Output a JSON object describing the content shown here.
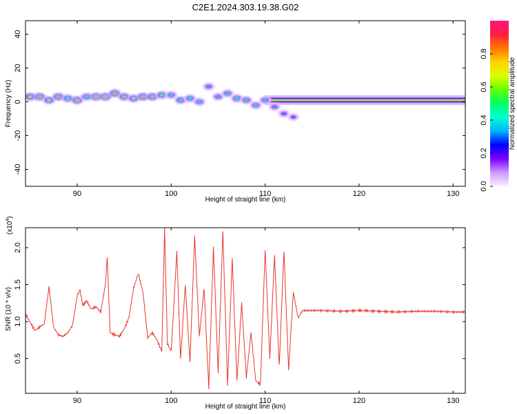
{
  "figure": {
    "title": "C2E1.2024.303.19.38.G02"
  },
  "chart_data": [
    {
      "type": "heatmap",
      "xlabel": "Height of straight line (km)",
      "ylabel": "Frequency (Hz)",
      "xlim": [
        84.5,
        131.3
      ],
      "ylim": [
        -50,
        48
      ],
      "xticks": [
        90,
        100,
        110,
        120,
        130
      ],
      "yticks": [
        -40,
        -20,
        0,
        20,
        40
      ],
      "colorbar": {
        "label": "Normalized spectral amplitude",
        "range": [
          0,
          1
        ],
        "ticks": [
          0.0,
          0.2,
          0.4,
          0.6,
          0.8
        ],
        "colormap": [
          "#f8f0ff",
          "#cc99ff",
          "#7b00ff",
          "#0000ff",
          "#00b4ff",
          "#00ffd2",
          "#00ff64",
          "#64ff00",
          "#dcff00",
          "#ffd200",
          "#ff7800",
          "#ff1e3c",
          "#ff147d"
        ]
      },
      "ridge": [
        {
          "x": 85.0,
          "f": 3,
          "amp": 0.75
        },
        {
          "x": 86.0,
          "f": 3,
          "amp": 0.9
        },
        {
          "x": 87.0,
          "f": 1,
          "amp": 0.65
        },
        {
          "x": 88.0,
          "f": 3,
          "amp": 0.85
        },
        {
          "x": 89.0,
          "f": 2,
          "amp": 0.6
        },
        {
          "x": 90.0,
          "f": 1,
          "amp": 0.9
        },
        {
          "x": 91.0,
          "f": 3,
          "amp": 0.55
        },
        {
          "x": 92.0,
          "f": 3,
          "amp": 0.95
        },
        {
          "x": 93.0,
          "f": 3,
          "amp": 0.95
        },
        {
          "x": 94.0,
          "f": 5,
          "amp": 0.85
        },
        {
          "x": 95.0,
          "f": 3,
          "amp": 0.8
        },
        {
          "x": 96.0,
          "f": 2,
          "amp": 0.65
        },
        {
          "x": 97.0,
          "f": 3,
          "amp": 0.9
        },
        {
          "x": 98.0,
          "f": 3,
          "amp": 0.8
        },
        {
          "x": 99.0,
          "f": 4,
          "amp": 0.6
        },
        {
          "x": 100.0,
          "f": 4,
          "amp": 0.45
        },
        {
          "x": 101.0,
          "f": 1,
          "amp": 0.55
        },
        {
          "x": 102.0,
          "f": 2,
          "amp": 0.5
        },
        {
          "x": 103.0,
          "f": 0,
          "amp": 0.45
        },
        {
          "x": 104.0,
          "f": 9,
          "amp": 0.35
        },
        {
          "x": 105.0,
          "f": 3,
          "amp": 0.4
        },
        {
          "x": 106.0,
          "f": 5,
          "amp": 0.45
        },
        {
          "x": 107.0,
          "f": 2,
          "amp": 0.55
        },
        {
          "x": 108.0,
          "f": 1,
          "amp": 0.5
        },
        {
          "x": 109.0,
          "f": -2,
          "amp": 0.45
        },
        {
          "x": 110.0,
          "f": 1,
          "amp": 0.45
        },
        {
          "x": 111.0,
          "f": -3,
          "amp": 0.35
        },
        {
          "x": 112.0,
          "f": -7,
          "amp": 0.3
        },
        {
          "x": 113.0,
          "f": -9,
          "amp": 0.25
        }
      ],
      "band": {
        "x_start": 110.0,
        "x_end": 131.3,
        "f": 1,
        "amp": 0.7
      }
    },
    {
      "type": "line",
      "xlabel": "Height of straight line (km)",
      "ylabel": "SNR (10 * v/v)",
      "scale_label": "(x10",
      "scale_exponent": "4",
      "scale_close": ")",
      "xlim": [
        84.5,
        131.3
      ],
      "ylim": [
        0.03,
        2.27
      ],
      "xticks": [
        90,
        100,
        110,
        120,
        130
      ],
      "yticks": [
        0.5,
        1.0,
        1.5,
        2.0
      ],
      "ytick_labels": [
        "0.5",
        "1.0",
        "1.5",
        "2.0"
      ],
      "color": "#e8342a",
      "series": [
        {
          "x": [
            84.5,
            85.5,
            86.5,
            87.0,
            87.5,
            88.0,
            88.5,
            89.0,
            89.5,
            90.0,
            90.3,
            90.6,
            91.0,
            91.5,
            92.0,
            92.5,
            93.0,
            93.2,
            93.5,
            94.0,
            94.5,
            95.0,
            95.5,
            96.0,
            96.5,
            97.0,
            97.5,
            98.0,
            98.5,
            99.0,
            99.3,
            99.6,
            100.0,
            100.3,
            100.6,
            101.0,
            101.5,
            102.0,
            102.5,
            103.0,
            103.5,
            104.0,
            104.5,
            105.0,
            105.5,
            106.0,
            106.5,
            107.0,
            107.5,
            108.0,
            108.5,
            109.0,
            109.5,
            110.0,
            110.5,
            111.0,
            111.5,
            112.0,
            112.5,
            113.0,
            113.5,
            114.0,
            116.0,
            118.0,
            120.0,
            122.0,
            124.0,
            126.0,
            128.0,
            130.0,
            131.3
          ],
          "y": [
            1.1,
            0.88,
            0.97,
            1.47,
            0.92,
            0.82,
            0.8,
            0.85,
            0.95,
            1.35,
            1.43,
            1.22,
            1.28,
            1.17,
            1.2,
            1.13,
            1.5,
            1.88,
            0.85,
            0.82,
            0.8,
            0.9,
            1.05,
            1.45,
            1.65,
            1.4,
            0.78,
            0.85,
            0.75,
            0.6,
            2.25,
            0.7,
            0.6,
            1.25,
            1.95,
            0.5,
            1.5,
            0.45,
            2.15,
            0.8,
            1.45,
            0.1,
            2.0,
            0.3,
            2.22,
            0.15,
            1.85,
            0.2,
            1.25,
            0.25,
            0.85,
            0.2,
            0.15,
            1.98,
            0.5,
            1.9,
            0.4,
            1.95,
            0.35,
            1.4,
            1.05,
            1.15,
            1.15,
            1.14,
            1.15,
            1.14,
            1.13,
            1.14,
            1.14,
            1.13,
            1.13
          ]
        }
      ]
    }
  ]
}
